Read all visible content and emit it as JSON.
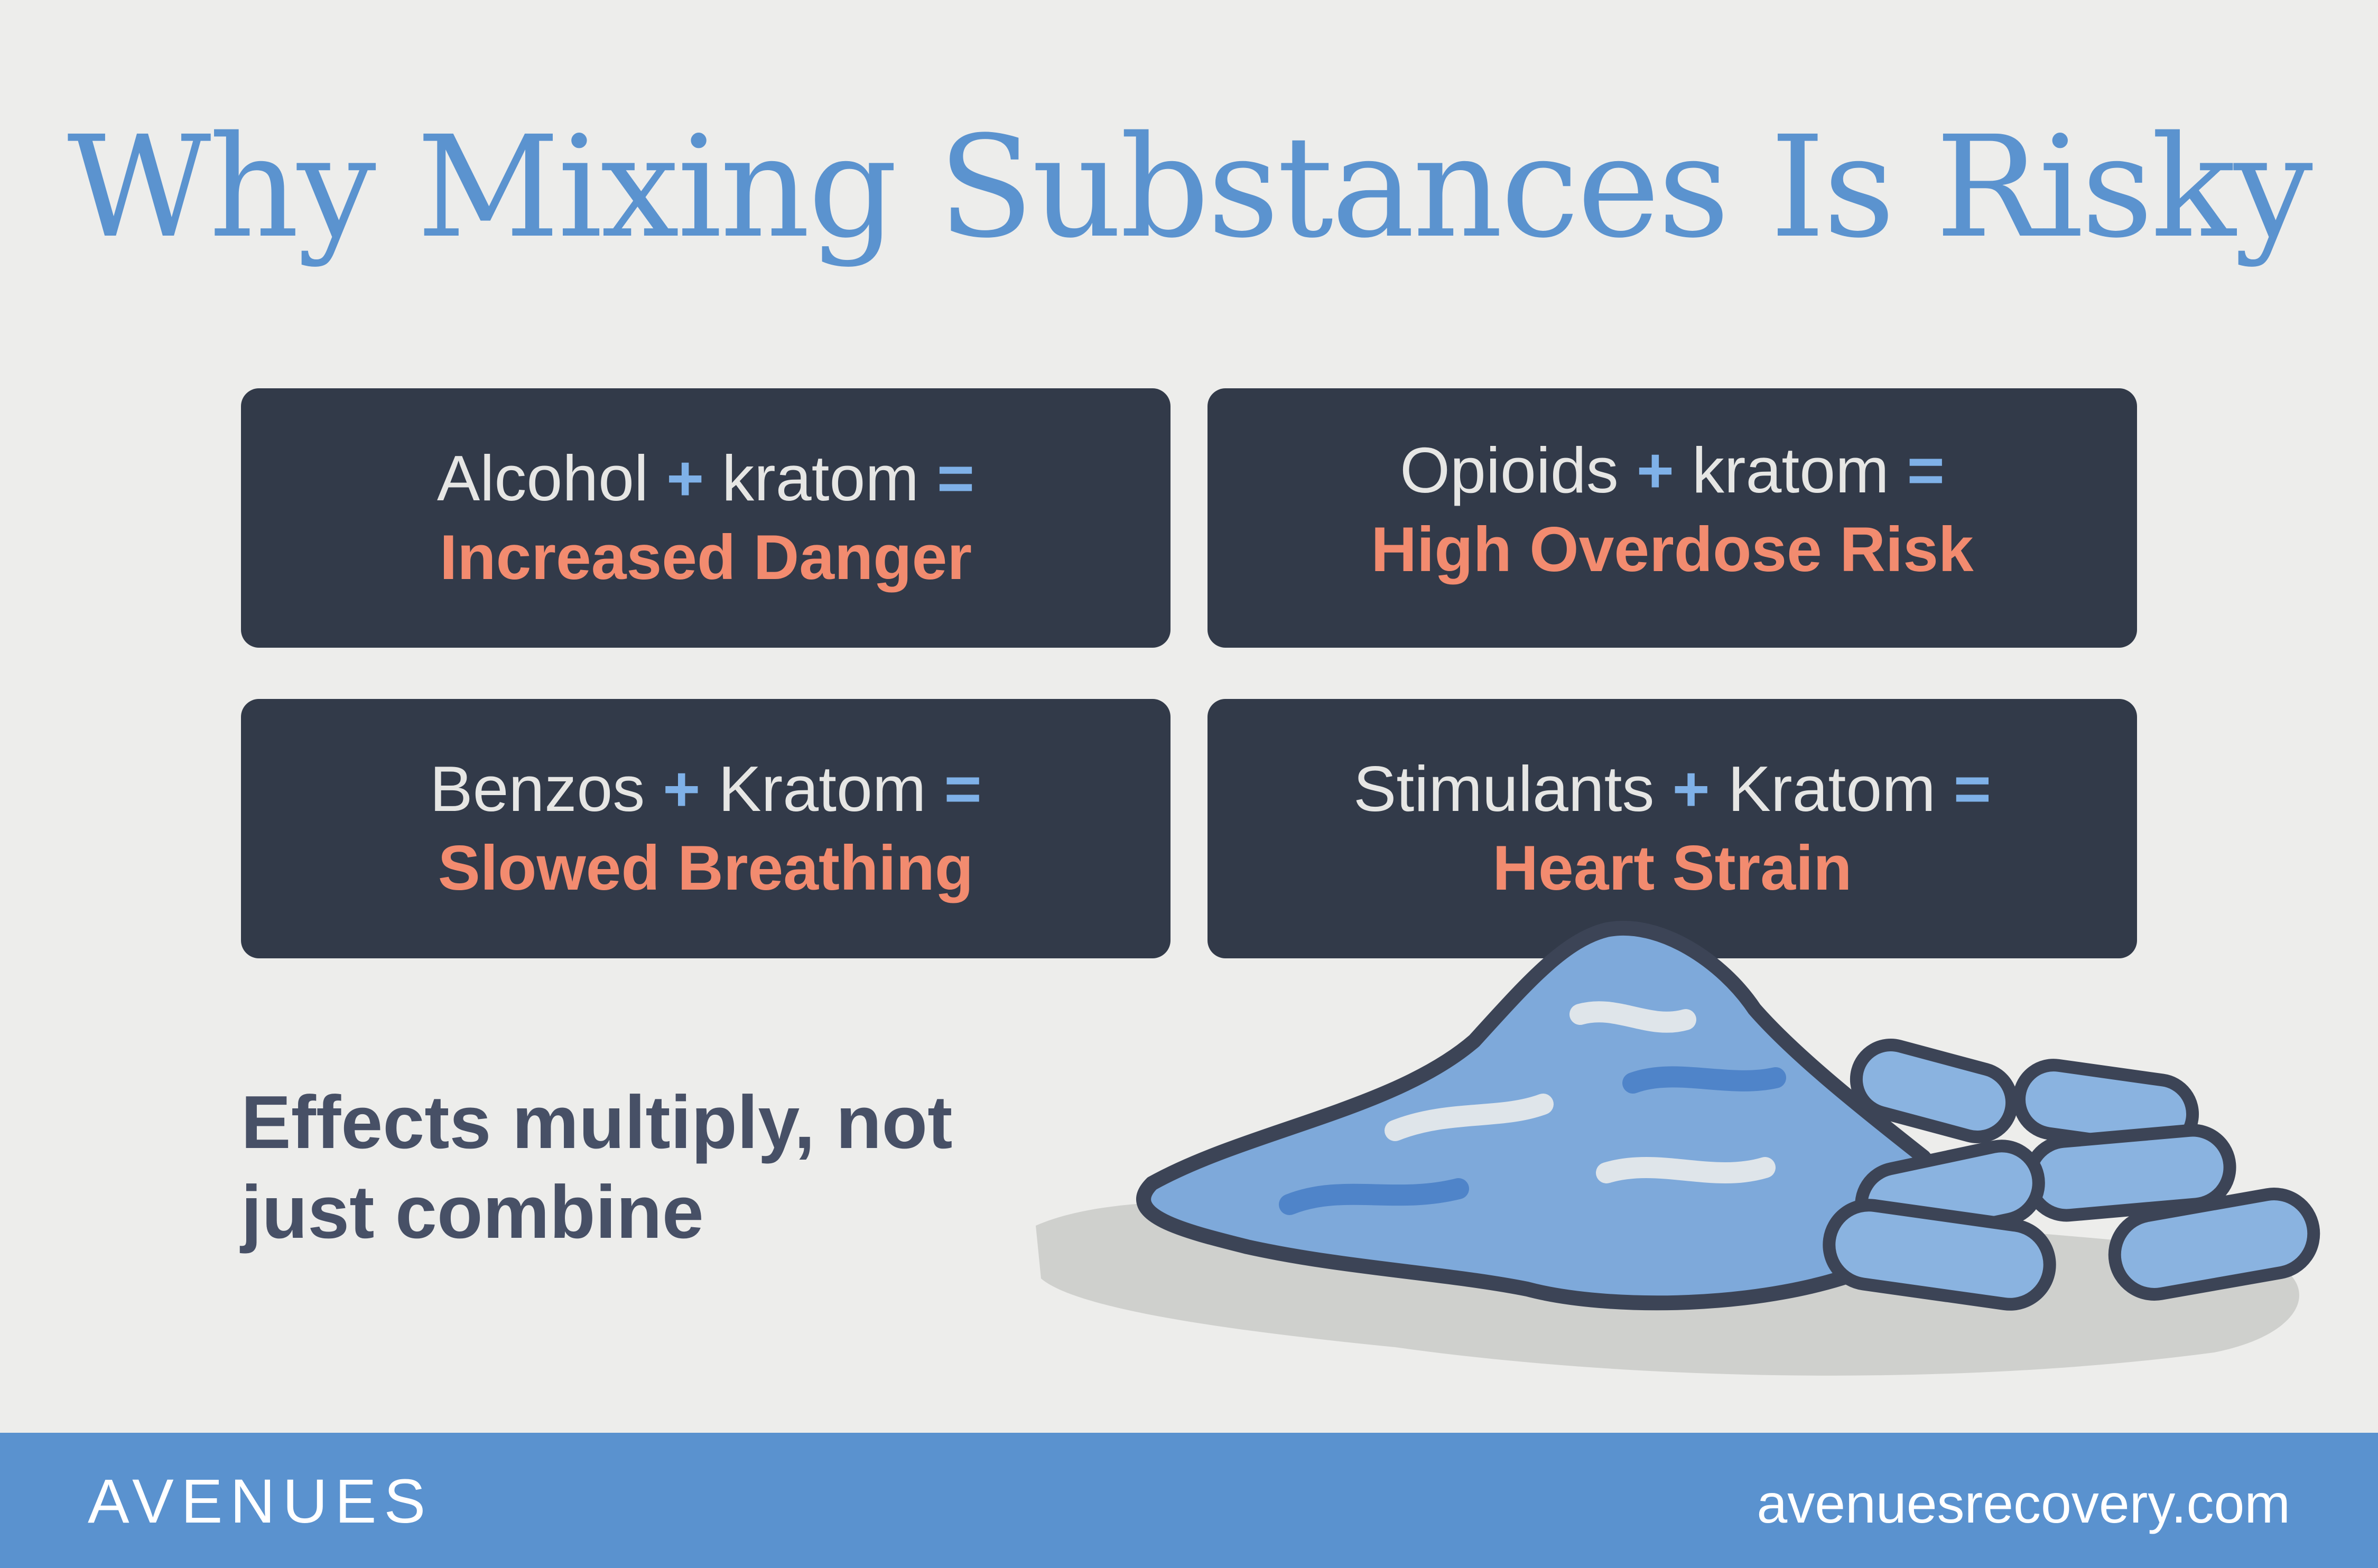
{
  "header": {
    "title": "Why Mixing Substances Is Risky"
  },
  "cards": [
    {
      "first": "Alcohol",
      "plus": "+",
      "second": "kratom",
      "equals": "=",
      "result": "Increased Danger"
    },
    {
      "first": "Opioids",
      "plus": "+",
      "second": "kratom",
      "equals": "=",
      "result": "High Overdose Risk"
    },
    {
      "first": "Benzos",
      "plus": "+",
      "second": "Kratom",
      "equals": "=",
      "result": "Slowed Breathing"
    },
    {
      "first": "Stimulants",
      "plus": "+",
      "second": "Kratom",
      "equals": "=",
      "result": "Heart Strain"
    }
  ],
  "tagline": {
    "line1": "Effects multiply, not",
    "line2": "just combine"
  },
  "footer": {
    "logo": "AVENUES",
    "url": "avenuesrecovery.com"
  }
}
